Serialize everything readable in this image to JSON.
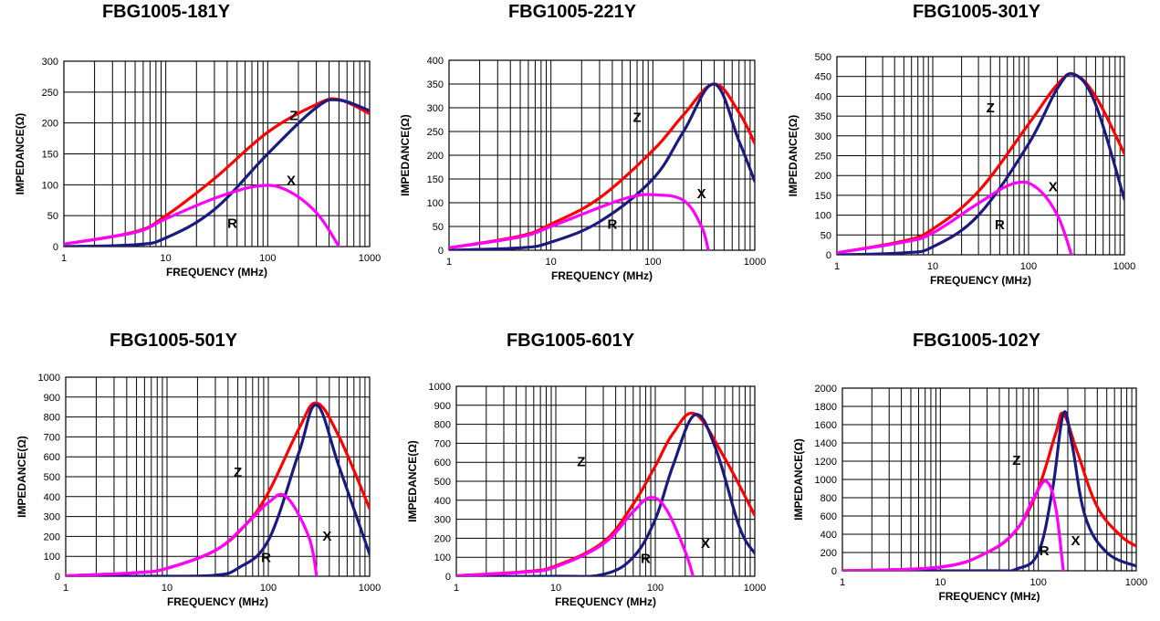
{
  "chart_data": [
    {
      "type": "line",
      "title": "FBG1005-181Y",
      "xlabel": "FREQUENCY (MHz)",
      "ylabel": "IMPEDANCE(Ω)",
      "x_scale": "log",
      "xlim": [
        1,
        1000
      ],
      "ylim": [
        0,
        300
      ],
      "y_ticks": [
        0,
        50,
        100,
        150,
        200,
        250,
        300
      ],
      "x_ticks": [
        1,
        10,
        100,
        1000
      ],
      "grid": true,
      "colors": {
        "Z": "#ff0000",
        "R": "#1a1a80",
        "X": "#ff00ff"
      },
      "series": [
        {
          "name": "Z",
          "x": [
            1,
            5,
            10,
            30,
            100,
            300,
            500,
            1000
          ],
          "y": [
            4,
            24,
            50,
            110,
            185,
            230,
            238,
            215
          ]
        },
        {
          "name": "R",
          "x": [
            1,
            5,
            10,
            30,
            100,
            300,
            500,
            1000
          ],
          "y": [
            0,
            3,
            14,
            60,
            150,
            225,
            237,
            220
          ]
        },
        {
          "name": "X",
          "x": [
            1,
            5,
            10,
            30,
            80,
            150,
            300,
            500
          ],
          "y": [
            4,
            23,
            45,
            78,
            98,
            92,
            55,
            0
          ]
        }
      ],
      "annotations": [
        {
          "text": "Z",
          "x": 180,
          "y": 205
        },
        {
          "text": "X",
          "x": 170,
          "y": 100
        },
        {
          "text": "R",
          "x": 45,
          "y": 30
        }
      ]
    },
    {
      "type": "line",
      "title": "FBG1005-221Y",
      "xlabel": "FREQUENCY (MHz)",
      "ylabel": "IMPEDANCE(Ω)",
      "x_scale": "log",
      "xlim": [
        1,
        1000
      ],
      "ylim": [
        0,
        400
      ],
      "y_ticks": [
        0,
        50,
        100,
        150,
        200,
        250,
        300,
        350,
        400
      ],
      "x_ticks": [
        1,
        10,
        100,
        1000
      ],
      "grid": true,
      "colors": {
        "Z": "#ff0000",
        "R": "#1a1a80",
        "X": "#ff00ff"
      },
      "series": [
        {
          "name": "Z",
          "x": [
            1,
            5,
            10,
            30,
            100,
            200,
            400,
            700,
            1000
          ],
          "y": [
            5,
            30,
            55,
            110,
            210,
            285,
            350,
            290,
            225
          ]
        },
        {
          "name": "R",
          "x": [
            1,
            5,
            10,
            30,
            100,
            200,
            400,
            700,
            1000
          ],
          "y": [
            0,
            5,
            17,
            60,
            150,
            250,
            350,
            230,
            145
          ]
        },
        {
          "name": "X",
          "x": [
            1,
            5,
            10,
            30,
            60,
            100,
            200,
            300,
            350
          ],
          "y": [
            5,
            28,
            50,
            90,
            112,
            117,
            105,
            50,
            0
          ]
        }
      ],
      "annotations": [
        {
          "text": "Z",
          "x": 70,
          "y": 270
        },
        {
          "text": "X",
          "x": 300,
          "y": 110
        },
        {
          "text": "R",
          "x": 40,
          "y": 45
        }
      ]
    },
    {
      "type": "line",
      "title": "FBG1005-301Y",
      "xlabel": "FREQUENCY (MHz)",
      "ylabel": "IMPEDANCE(Ω)",
      "x_scale": "log",
      "xlim": [
        1,
        1000
      ],
      "ylim": [
        0,
        500
      ],
      "y_ticks": [
        0,
        50,
        100,
        150,
        200,
        250,
        300,
        350,
        400,
        450,
        500
      ],
      "x_ticks": [
        1,
        10,
        100,
        1000
      ],
      "grid": true,
      "colors": {
        "Z": "#ff0000",
        "R": "#1a1a80",
        "X": "#ff00ff"
      },
      "series": [
        {
          "name": "Z",
          "x": [
            1,
            5,
            10,
            30,
            100,
            200,
            300,
            500,
            1000
          ],
          "y": [
            5,
            35,
            65,
            160,
            330,
            430,
            455,
            400,
            255
          ]
        },
        {
          "name": "R",
          "x": [
            1,
            5,
            10,
            30,
            100,
            200,
            300,
            500,
            1000
          ],
          "y": [
            0,
            5,
            20,
            100,
            280,
            420,
            455,
            380,
            140
          ]
        },
        {
          "name": "X",
          "x": [
            1,
            5,
            10,
            30,
            70,
            120,
            200,
            280
          ],
          "y": [
            5,
            32,
            55,
            130,
            180,
            170,
            100,
            0
          ]
        }
      ],
      "annotations": [
        {
          "text": "Z",
          "x": 40,
          "y": 360
        },
        {
          "text": "X",
          "x": 180,
          "y": 160
        },
        {
          "text": "R",
          "x": 50,
          "y": 65
        }
      ]
    },
    {
      "type": "line",
      "title": "FBG1005-501Y",
      "xlabel": "FREQUENCY (MHz)",
      "ylabel": "IMPEDANCE(Ω)",
      "x_scale": "log",
      "xlim": [
        1,
        1000
      ],
      "ylim": [
        0,
        1000
      ],
      "y_ticks": [
        0,
        100,
        200,
        300,
        400,
        500,
        600,
        700,
        800,
        900,
        1000
      ],
      "x_ticks": [
        1,
        10,
        100,
        1000
      ],
      "grid": true,
      "colors": {
        "Z": "#ff0000",
        "R": "#1a1a80",
        "X": "#ff00ff"
      },
      "series": [
        {
          "name": "Z",
          "x": [
            1,
            5,
            10,
            30,
            60,
            100,
            200,
            300,
            500,
            1000
          ],
          "y": [
            2,
            18,
            40,
            130,
            260,
            420,
            740,
            870,
            700,
            340
          ]
        },
        {
          "name": "R",
          "x": [
            1,
            10,
            30,
            50,
            100,
            200,
            300,
            500,
            1000
          ],
          "y": [
            0,
            0,
            5,
            40,
            180,
            620,
            860,
            550,
            110
          ]
        },
        {
          "name": "X",
          "x": [
            1,
            5,
            10,
            30,
            60,
            100,
            150,
            250,
            300
          ],
          "y": [
            2,
            18,
            40,
            130,
            260,
            370,
            400,
            200,
            0
          ]
        }
      ],
      "annotations": [
        {
          "text": "Z",
          "x": 50,
          "y": 500
        },
        {
          "text": "X",
          "x": 380,
          "y": 180
        },
        {
          "text": "R",
          "x": 95,
          "y": 70
        }
      ]
    },
    {
      "type": "line",
      "title": "FBG1005-601Y",
      "xlabel": "FREQUENCY (MHz)",
      "ylabel": "IMPEDANCE(Ω)",
      "x_scale": "log",
      "xlim": [
        1,
        1000
      ],
      "ylim": [
        0,
        1000
      ],
      "y_ticks": [
        0,
        100,
        200,
        300,
        400,
        500,
        600,
        700,
        800,
        900,
        1000
      ],
      "x_ticks": [
        1,
        10,
        100,
        1000
      ],
      "grid": true,
      "colors": {
        "Z": "#ff0000",
        "R": "#1a1a80",
        "X": "#ff00ff"
      },
      "series": [
        {
          "name": "Z",
          "x": [
            1,
            5,
            10,
            30,
            60,
            100,
            150,
            250,
            500,
            1000
          ],
          "y": [
            3,
            25,
            55,
            180,
            380,
            580,
            750,
            855,
            620,
            320
          ]
        },
        {
          "name": "R",
          "x": [
            1,
            10,
            30,
            60,
            100,
            150,
            250,
            400,
            700,
            1000
          ],
          "y": [
            0,
            0,
            10,
            100,
            300,
            580,
            850,
            680,
            260,
            120
          ]
        },
        {
          "name": "X",
          "x": [
            1,
            5,
            10,
            30,
            60,
            90,
            130,
            200,
            240
          ],
          "y": [
            3,
            22,
            50,
            170,
            340,
            415,
            350,
            130,
            0
          ]
        }
      ],
      "annotations": [
        {
          "text": "Z",
          "x": 18,
          "y": 580
        },
        {
          "text": "X",
          "x": 320,
          "y": 150
        },
        {
          "text": "R",
          "x": 80,
          "y": 70
        }
      ]
    },
    {
      "type": "line",
      "title": "FBG1005-102Y",
      "xlabel": "FREQUENCY (MHz)",
      "ylabel": "IMPEDANCE(Ω)",
      "x_scale": "log",
      "xlim": [
        1,
        1000
      ],
      "ylim": [
        0,
        2000
      ],
      "y_ticks": [
        0,
        200,
        400,
        600,
        800,
        1000,
        1200,
        1400,
        1600,
        1800,
        2000
      ],
      "x_ticks": [
        1,
        10,
        100,
        1000
      ],
      "grid": true,
      "colors": {
        "Z": "#ff0000",
        "R": "#1a1a80",
        "X": "#ff00ff"
      },
      "series": [
        {
          "name": "Z",
          "x": [
            1,
            10,
            30,
            60,
            100,
            150,
            180,
            250,
            400,
            700,
            1000
          ],
          "y": [
            0,
            40,
            200,
            450,
            900,
            1500,
            1720,
            1300,
            700,
            380,
            270
          ]
        },
        {
          "name": "R",
          "x": [
            1,
            30,
            60,
            100,
            140,
            180,
            220,
            300,
            500,
            1000
          ],
          "y": [
            0,
            0,
            20,
            200,
            900,
            1720,
            1400,
            600,
            200,
            50
          ]
        },
        {
          "name": "X",
          "x": [
            1,
            10,
            30,
            60,
            90,
            120,
            150,
            180
          ],
          "y": [
            0,
            40,
            200,
            450,
            800,
            980,
            700,
            0
          ]
        }
      ],
      "annotations": [
        {
          "text": "Z",
          "x": 60,
          "y": 1160
        },
        {
          "text": "X",
          "x": 240,
          "y": 280
        },
        {
          "text": "R",
          "x": 115,
          "y": 170
        }
      ]
    }
  ]
}
